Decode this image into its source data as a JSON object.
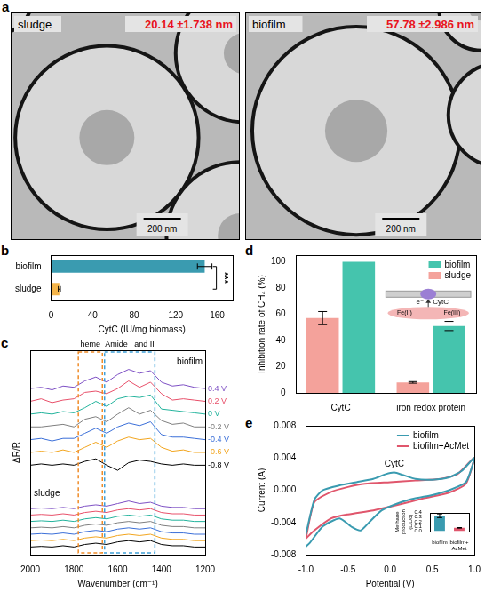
{
  "figure": {
    "label": "a",
    "images": [
      {
        "title": "sludge",
        "measurement": "20.14 ±1.738 nm",
        "scale_bar": "200 nm"
      },
      {
        "title": "biofilm",
        "measurement": "57.78 ±2.986 nm",
        "scale_bar": "200 nm"
      }
    ]
  },
  "chart_data": [
    {
      "label": "b",
      "type": "bar",
      "orientation": "horizontal",
      "categories": [
        "biofilm",
        "sludge"
      ],
      "values": [
        148,
        8
      ],
      "errors": [
        7,
        1
      ],
      "colors": [
        "#3a9bb0",
        "#f5b54a"
      ],
      "x_label": "CytC (IU/mg biomass)",
      "xlim": [
        0,
        175
      ],
      "xticks": [
        0,
        40,
        80,
        120,
        160
      ],
      "annotation": "***"
    },
    {
      "label": "c",
      "type": "line",
      "x_label": "Wavenumber (cm⁻¹)",
      "y_label": "ΔR/R",
      "x": [
        2000,
        1950,
        1900,
        1850,
        1800,
        1750,
        1700,
        1650,
        1600,
        1550,
        1500,
        1450,
        1400,
        1350,
        1300,
        1250,
        1200
      ],
      "xlim": [
        2000,
        1200
      ],
      "xticks": [
        2000,
        1800,
        1600,
        1400,
        1200
      ],
      "ylim": [
        0,
        16
      ],
      "tick_labels": "x",
      "regions": [
        {
          "label": "heme",
          "x": [
            1780,
            1670
          ],
          "color": "#f08c28"
        },
        {
          "label": "Amide I and II",
          "x": [
            1660,
            1430
          ],
          "color": "#3fa0d8"
        }
      ],
      "groups": [
        {
          "name": "biofilm",
          "series": [
            {
              "name": "0.4 V",
              "color": "#7d4fc4",
              "values": [
                13.0,
                13.1,
                12.9,
                13.2,
                13.1,
                13.6,
                13.9,
                13.5,
                14.1,
                14.5,
                14.2,
                14.4,
                13.5,
                13.2,
                13.3,
                13.1,
                13.0
              ]
            },
            {
              "name": "0.2 V",
              "color": "#e8506a",
              "values": [
                12.0,
                12.2,
                11.9,
                12.1,
                12.2,
                12.7,
                12.8,
                12.6,
                13.0,
                13.6,
                13.1,
                13.5,
                12.6,
                12.1,
                12.2,
                12.1,
                12.0
              ]
            },
            {
              "name": "0 V",
              "color": "#22b39c",
              "values": [
                11.0,
                11.1,
                11.0,
                11.2,
                11.1,
                11.5,
                12.0,
                11.6,
                12.2,
                12.4,
                12.3,
                12.5,
                11.4,
                11.3,
                11.2,
                11.1,
                11.0
              ]
            },
            {
              "name": "-0.2 V",
              "color": "#7f7f7f",
              "values": [
                10.0,
                10.0,
                10.1,
                10.2,
                10.0,
                10.6,
                10.8,
                10.4,
                11.0,
                11.5,
                11.0,
                11.3,
                10.5,
                10.2,
                10.3,
                10.0,
                10.0
              ]
            },
            {
              "name": "-0.4 V",
              "color": "#3b6fd8",
              "values": [
                9.0,
                9.1,
                8.9,
                9.1,
                9.1,
                9.5,
                9.9,
                9.5,
                10.0,
                10.3,
                10.1,
                10.4,
                9.4,
                9.2,
                9.2,
                9.1,
                9.0
              ]
            },
            {
              "name": "-0.6 V",
              "color": "#f2a51e",
              "values": [
                8.0,
                8.1,
                8.0,
                8.2,
                8.0,
                8.4,
                8.8,
                8.4,
                8.9,
                9.2,
                9.0,
                9.1,
                8.4,
                8.1,
                8.2,
                8.0,
                8.0
              ]
            },
            {
              "name": "-0.8 V",
              "color": "#000000",
              "values": [
                7.0,
                7.1,
                7.0,
                7.1,
                7.0,
                7.3,
                7.5,
                7.0,
                6.6,
                7.2,
                7.4,
                7.3,
                7.1,
                7.0,
                7.1,
                7.0,
                7.0
              ]
            }
          ]
        },
        {
          "name": "sludge",
          "series": [
            {
              "name": "0.4 V",
              "color": "#7d4fc4",
              "values": [
                3.6,
                3.65,
                3.6,
                3.7,
                3.6,
                3.8,
                3.9,
                3.8,
                4.0,
                4.2,
                4.0,
                4.1,
                3.8,
                3.7,
                3.7,
                3.6,
                3.6
              ]
            },
            {
              "name": "0.2 V",
              "color": "#e8506a",
              "values": [
                3.1,
                3.15,
                3.1,
                3.2,
                3.1,
                3.3,
                3.4,
                3.3,
                3.5,
                3.6,
                3.5,
                3.6,
                3.3,
                3.2,
                3.2,
                3.1,
                3.1
              ]
            },
            {
              "name": "0 V",
              "color": "#22b39c",
              "values": [
                2.6,
                2.65,
                2.6,
                2.7,
                2.6,
                2.8,
                2.9,
                2.8,
                3.0,
                3.1,
                3.0,
                3.1,
                2.8,
                2.7,
                2.7,
                2.6,
                2.6
              ]
            },
            {
              "name": "-0.2 V",
              "color": "#7f7f7f",
              "values": [
                2.1,
                2.15,
                2.1,
                2.2,
                2.1,
                2.3,
                2.4,
                2.3,
                2.5,
                2.6,
                2.5,
                2.6,
                2.3,
                2.2,
                2.2,
                2.1,
                2.1
              ]
            },
            {
              "name": "-0.4 V",
              "color": "#3b6fd8",
              "values": [
                1.6,
                1.65,
                1.6,
                1.7,
                1.6,
                1.8,
                1.9,
                1.8,
                2.0,
                2.1,
                2.0,
                2.1,
                1.8,
                1.7,
                1.7,
                1.6,
                1.6
              ]
            },
            {
              "name": "-0.6 V",
              "color": "#f2a51e",
              "values": [
                1.1,
                1.15,
                1.1,
                1.2,
                1.1,
                1.3,
                1.4,
                1.3,
                1.5,
                1.6,
                1.5,
                1.6,
                1.3,
                1.2,
                1.2,
                1.1,
                1.1
              ]
            },
            {
              "name": "-0.8 V",
              "color": "#000000",
              "values": [
                0.6,
                0.65,
                0.6,
                0.7,
                0.6,
                0.8,
                0.9,
                0.8,
                1.0,
                1.1,
                1.0,
                1.1,
                0.8,
                0.7,
                0.7,
                0.6,
                0.6
              ]
            }
          ]
        }
      ]
    },
    {
      "label": "d",
      "type": "bar",
      "categories": [
        "CytC",
        "iron redox protein"
      ],
      "series": [
        {
          "name": "sludge",
          "color": "#f4a29b",
          "values": [
            57,
            8
          ],
          "errors": [
            5,
            0.6
          ]
        },
        {
          "name": "biofilm",
          "color": "#45c4ad",
          "values": [
            100,
            51
          ],
          "errors": [
            0,
            3.5
          ]
        }
      ],
      "y_label": "Inhibition rate of CH₄ (%)",
      "ylim": [
        0,
        105
      ],
      "yticks": [
        0,
        20,
        40,
        60,
        80,
        100
      ],
      "legend": "top-right",
      "inset_texts": [
        "CytC",
        "Fe(II)",
        "Fe(III)",
        "e⁻"
      ]
    },
    {
      "label": "e",
      "type": "line",
      "x_label": "Potential (V)",
      "y_label": "Current (A)",
      "xlim": [
        -1,
        1
      ],
      "xticks": [
        {
          "value": -1,
          "label": "-1.0"
        },
        -0.5,
        {
          "value": 0,
          "label": "0.0"
        },
        0.5,
        {
          "value": 1,
          "label": "1.0"
        }
      ],
      "ylim": [
        -0.008,
        0.008
      ],
      "yticks": [
        -0.008,
        -0.004,
        {
          "value": 0,
          "label": "0.000"
        },
        0.004,
        0.008
      ],
      "legend": "top-right",
      "annotations": [
        {
          "text": "CytC",
          "x": 0.05,
          "y": 0.0022
        }
      ],
      "series": [
        {
          "name": "biofilm",
          "color": "#3a9bb0",
          "x": [
            -1.0,
            -0.9,
            -0.8,
            -0.6,
            -0.4,
            -0.2,
            -0.05,
            0.05,
            0.15,
            0.3,
            0.5,
            0.7,
            0.85,
            1.0,
            0.9,
            0.7,
            0.5,
            0.3,
            0.1,
            -0.1,
            -0.25,
            -0.35,
            -0.45,
            -0.6,
            -0.8,
            -0.95,
            -1.0
          ],
          "values": [
            -0.0055,
            -0.0012,
            0.0,
            0.0006,
            0.001,
            0.0014,
            0.002,
            0.0022,
            0.0019,
            0.0014,
            0.0013,
            0.0016,
            0.0024,
            0.004,
            0.001,
            0.0,
            -0.0006,
            -0.001,
            -0.0016,
            -0.0025,
            -0.004,
            -0.005,
            -0.0046,
            -0.0035,
            -0.0045,
            -0.0065,
            -0.007
          ]
        },
        {
          "name": "biofilm+AcMet",
          "color": "#e0566c",
          "x": [
            -1.0,
            -0.9,
            -0.7,
            -0.5,
            -0.3,
            0.0,
            0.3,
            0.6,
            0.8,
            1.0,
            0.9,
            0.7,
            0.4,
            0.1,
            -0.2,
            -0.5,
            -0.7,
            -0.9,
            -1.0
          ],
          "values": [
            -0.006,
            -0.0015,
            -0.0002,
            0.0004,
            0.0008,
            0.001,
            0.0012,
            0.0014,
            0.002,
            0.004,
            0.0008,
            -0.0003,
            -0.001,
            -0.0018,
            -0.0025,
            -0.003,
            -0.0035,
            -0.005,
            -0.006
          ]
        }
      ],
      "inset": {
        "type": "bar",
        "categories": [
          "biofilm",
          "biofilm+AcMet"
        ],
        "values": [
          0.33,
          0.07
        ],
        "errors": [
          0.04,
          0.006
        ],
        "colors": [
          "#3a9bb0",
          "#e0566c"
        ],
        "y_label": "Methane production (L/L/d)",
        "ylim": [
          0,
          0.4
        ],
        "yticks": [
          {
            "value": 0,
            "label": "0.0"
          },
          0.1,
          0.2,
          0.3,
          0.4
        ]
      }
    }
  ]
}
